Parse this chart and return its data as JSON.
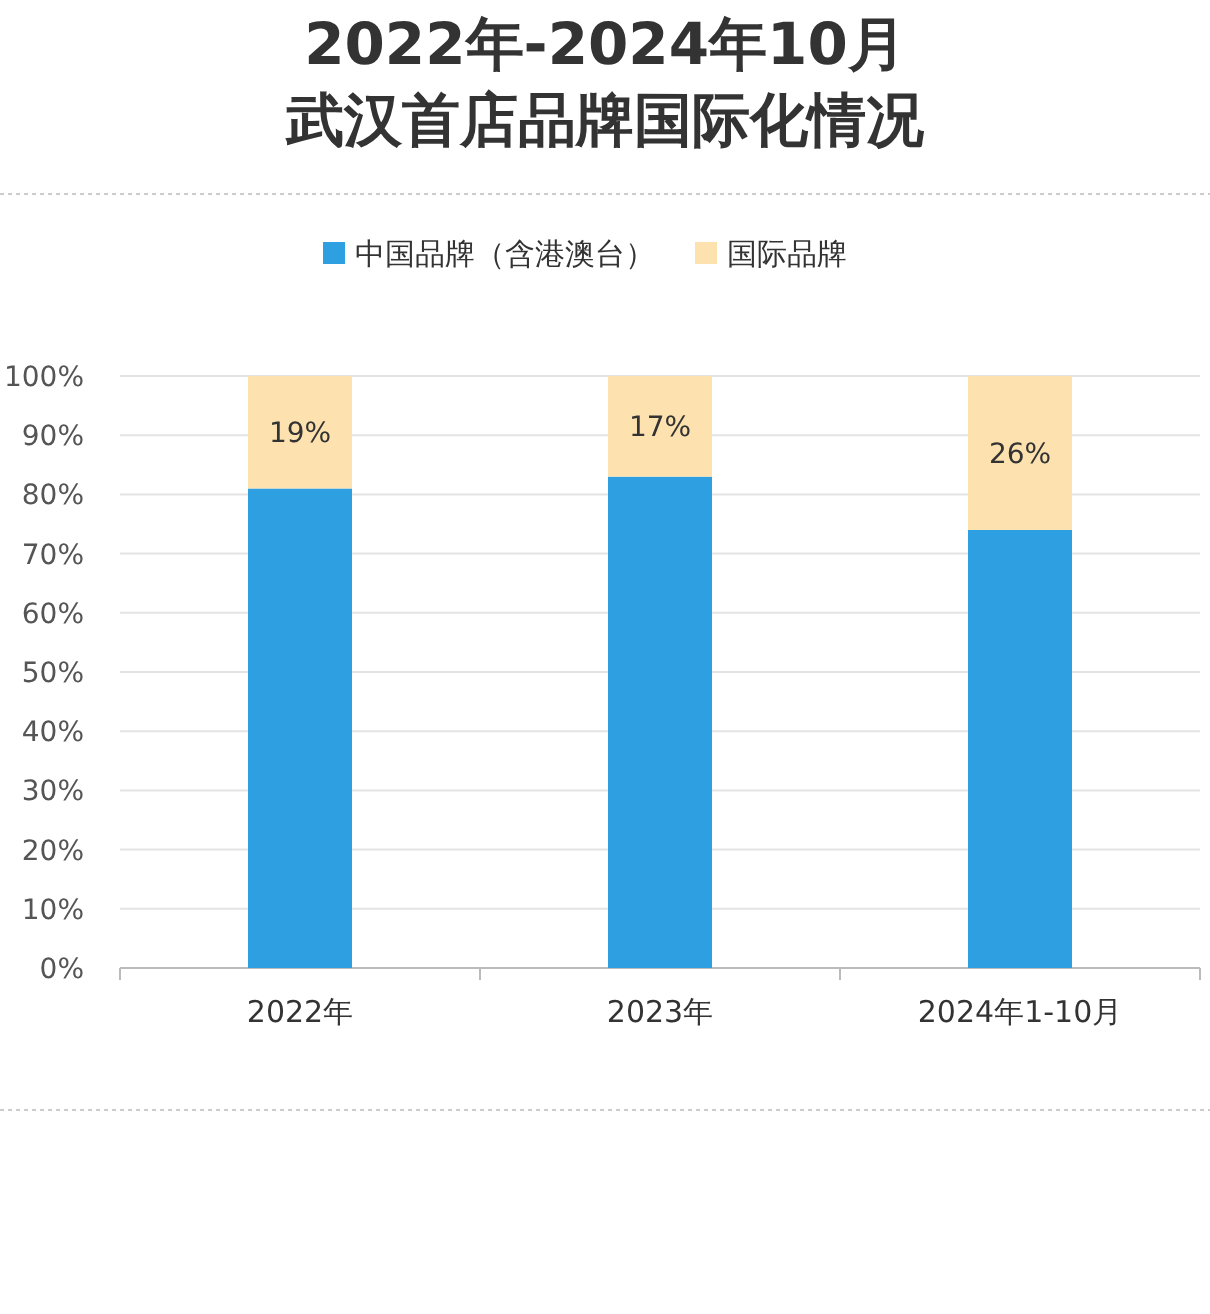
{
  "chart_data": {
    "type": "bar",
    "title": "2022年-2024年10月",
    "subtitle": "武汉首店品牌国际化情况",
    "stacked": true,
    "legend": "top",
    "grid": "y",
    "categories": [
      "2022年",
      "2023年",
      "2024年1-10月"
    ],
    "series": [
      {
        "name": "中国品牌（含港澳台）",
        "color": "#2e9fe0",
        "values": [
          81,
          83,
          74
        ]
      },
      {
        "name": "国际品牌",
        "color": "#fde2b0",
        "values": [
          19,
          17,
          26
        ],
        "value_labels": [
          "19%",
          "17%",
          "26%"
        ]
      }
    ],
    "ylim": [
      0,
      100
    ],
    "yticks": [
      {
        "value": 0,
        "label": "0%"
      },
      {
        "value": 10,
        "label": "10%"
      },
      {
        "value": 20,
        "label": "20%"
      },
      {
        "value": 30,
        "label": "30%"
      },
      {
        "value": 40,
        "label": "40%"
      },
      {
        "value": 50,
        "label": "50%"
      },
      {
        "value": 60,
        "label": "60%"
      },
      {
        "value": 70,
        "label": "70%"
      },
      {
        "value": 80,
        "label": "80%"
      },
      {
        "value": 90,
        "label": "90%"
      },
      {
        "value": 100,
        "label": "100%"
      }
    ]
  }
}
